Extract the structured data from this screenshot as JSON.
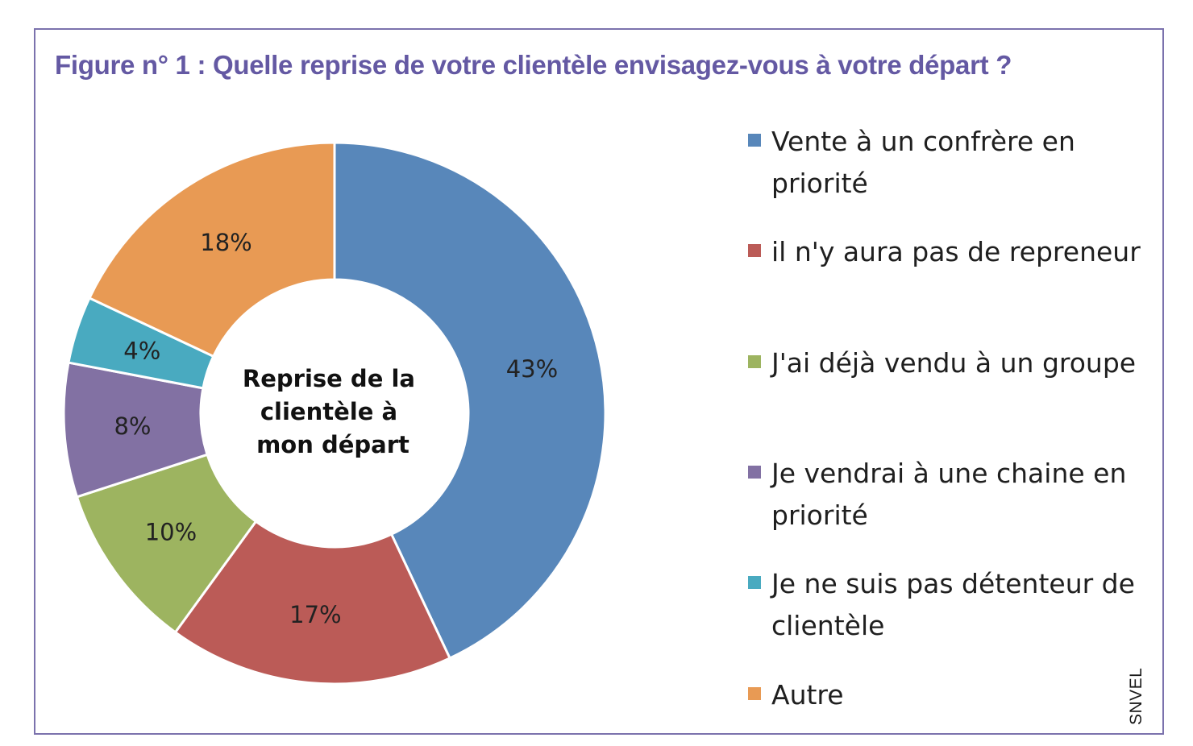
{
  "figure": {
    "title": "Figure n° 1 : Quelle reprise de votre clientèle envisagez-vous à votre départ ?",
    "source": "SNVEL"
  },
  "chart_data": {
    "type": "pie",
    "center_label": [
      "Reprise de la",
      "clientèle à",
      "mon départ"
    ],
    "slices": [
      {
        "label": "Vente à un confrère en priorité",
        "value": 43,
        "value_label": "43%",
        "color": "#5887ba"
      },
      {
        "label": "il n'y aura pas de repreneur",
        "value": 17,
        "value_label": "17%",
        "color": "#bb5b57"
      },
      {
        "label": "J'ai déjà vendu à un groupe",
        "value": 10,
        "value_label": "10%",
        "color": "#9db460"
      },
      {
        "label": "Je vendrai à une chaine en priorité",
        "value": 8,
        "value_label": "8%",
        "color": "#8271a3"
      },
      {
        "label": "Je ne suis pas détenteur de clientèle",
        "value": 4,
        "value_label": "4%",
        "color": "#49aac0"
      },
      {
        "label": "Autre",
        "value": 18,
        "value_label": "18%",
        "color": "#e89a54"
      }
    ],
    "legend_position": "right"
  }
}
